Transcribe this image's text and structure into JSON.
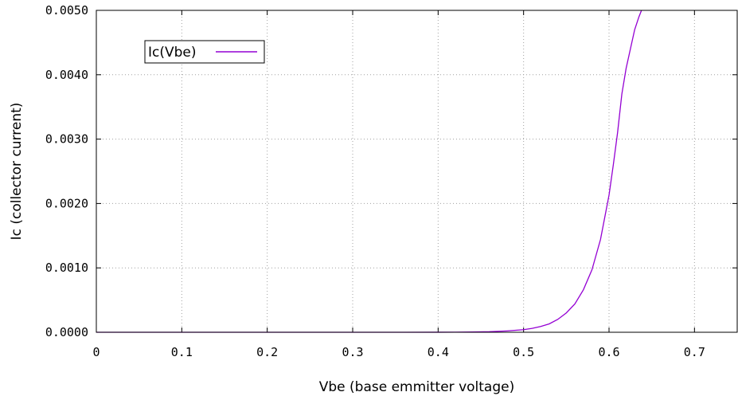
{
  "chart_data": {
    "type": "line",
    "title": "",
    "xlabel": "Vbe (base emmitter voltage)",
    "ylabel": "Ic (collector current)",
    "xlim": [
      0,
      0.75
    ],
    "ylim": [
      0,
      0.005
    ],
    "xticks": [
      0,
      0.1,
      0.2,
      0.3,
      0.4,
      0.5,
      0.6,
      0.7
    ],
    "xtick_labels": [
      "0",
      "0.1",
      "0.2",
      "0.3",
      "0.4",
      "0.5",
      "0.6",
      "0.7"
    ],
    "yticks": [
      0,
      0.001,
      0.002,
      0.003,
      0.004,
      0.005
    ],
    "ytick_labels": [
      "0.0000",
      "0.0010",
      "0.0020",
      "0.0030",
      "0.0040",
      "0.0050"
    ],
    "grid": true,
    "legend_position": "top-left",
    "series": [
      {
        "name": "Ic(Vbe)",
        "color": "#9400d3",
        "x": [
          0,
          0.05,
          0.1,
          0.15,
          0.2,
          0.25,
          0.3,
          0.35,
          0.4,
          0.42,
          0.44,
          0.46,
          0.48,
          0.5,
          0.51,
          0.52,
          0.53,
          0.54,
          0.55,
          0.56,
          0.57,
          0.58,
          0.59,
          0.6,
          0.605,
          0.61,
          0.615,
          0.62,
          0.625,
          0.63,
          0.635,
          0.638
        ],
        "y": [
          0,
          0,
          0,
          0,
          0,
          0,
          0,
          0,
          1e-06,
          2e-06,
          4e-06,
          9e-06,
          2e-05,
          4e-05,
          6e-05,
          9e-05,
          0.00013,
          0.0002,
          0.0003,
          0.00044,
          0.00066,
          0.00097,
          0.00144,
          0.00213,
          0.0026,
          0.0031,
          0.0037,
          0.0041,
          0.0044,
          0.0047,
          0.0049,
          0.005
        ]
      }
    ]
  }
}
